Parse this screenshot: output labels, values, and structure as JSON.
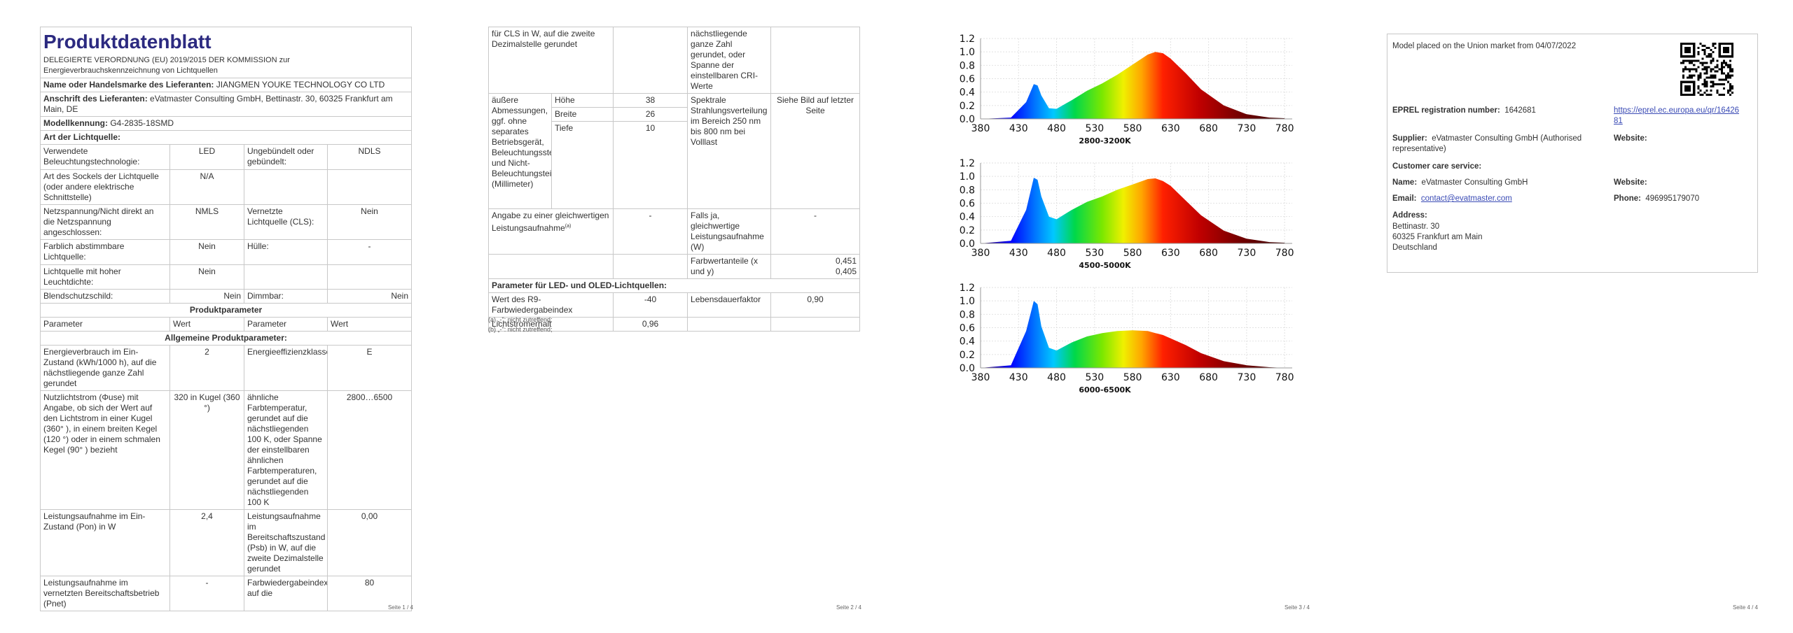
{
  "page1": {
    "title": "Produktdatenblatt",
    "regulation": "DELEGIERTE VERORDNUNG (EU) 2019/2015 DER KOMMISSION zur Energieverbrauchskennzeichnung von Lichtquellen",
    "supplier_label": "Name oder Handelsmarke des Lieferanten:",
    "supplier_value": "JIANGMEN YOUKE TECHNOLOGY CO LTD",
    "address_label": "Anschrift des Lieferanten:",
    "address_value": "eVatmaster Consulting GmbH, Bettinastr. 30, 60325 Frankfurt am Main, DE",
    "model_label": "Modellkennung:",
    "model_value": "G4-2835-18SMD",
    "light_type": "Art der Lichtquelle:",
    "rows": [
      {
        "a": "Verwendete Beleuchtungstechnologie:",
        "b": "LED",
        "c": "Ungebündelt oder gebündelt:",
        "d": "NDLS"
      },
      {
        "a": "Art des Sockels der Lichtquelle (oder andere elektrische Schnittstelle)",
        "b": "N/A",
        "c": "",
        "d": ""
      },
      {
        "a": "Netzspannung/Nicht direkt an die Netzspannung angeschlossen:",
        "b": "NMLS",
        "c": "Vernetzte Lichtquelle (CLS):",
        "d": "Nein"
      },
      {
        "a": "Farblich abstimmbare Lichtquelle:",
        "b": "Nein",
        "c": "Hülle:",
        "d": "-"
      },
      {
        "a": "Lichtquelle mit hoher Leuchtdichte:",
        "b": "Nein",
        "c": "",
        "d": ""
      },
      {
        "a": "Blendschutzschild:",
        "b": "Nein",
        "c": "Dimmbar:",
        "d": "Nein"
      }
    ],
    "produktparameter": "Produktparameter",
    "hdr_parameter": "Parameter",
    "hdr_wert": "Wert",
    "allgemeine": "Allgemeine Produktparameter:",
    "params": [
      {
        "a": "Energieverbrauch im Ein-Zustand (kWh/1000 h), auf die nächstliegende ganze Zahl gerundet",
        "b": "2",
        "c": "Energieeffizienzklasse",
        "d": "E"
      },
      {
        "a": "Nutzlichtstrom (Φuse) mit Angabe, ob sich der Wert auf den Lichtstrom in einer Kugel (360° ), in einem breiten Kegel (120 °) oder in einem schmalen Kegel (90° ) bezieht",
        "b": "320 in Kugel (360 °)",
        "c": "ähnliche Farbtemperatur, gerundet auf die nächstliegenden 100 K, oder Spanne der einstellbaren ähnlichen Farbtemperaturen, gerundet auf die nächstliegenden 100 K",
        "d": "2800…6500"
      },
      {
        "a": "Leistungsaufnahme im Ein-Zustand (Pon) in W",
        "b": "2,4",
        "c": "Leistungsaufnahme im Bereitschaftszustand (Psb) in W, auf die zweite Dezimalstelle gerundet",
        "d": "0,00"
      },
      {
        "a": "Leistungsaufnahme im vernetzten Bereitschaftsbetrieb (Pnet)",
        "b": "-",
        "c": "Farbwiedergabeindex, auf die",
        "d": "80"
      }
    ],
    "page_num": "Seite 1 / 4"
  },
  "page2": {
    "r0": {
      "a": "für CLS in W, auf die zweite Dezimalstelle gerundet",
      "c": "nächstliegende ganze Zahl gerundet, oder Spanne der einstellbaren CRI-Werte"
    },
    "dims_label": "äußere Abmessungen, ggf. ohne separates Betriebsgerät, Beleuchtungssteuerungsteile und Nicht-Beleuchtungsteile (Millimeter)",
    "dims": [
      {
        "name": "Höhe",
        "value": "38"
      },
      {
        "name": "Breite",
        "value": "26"
      },
      {
        "name": "Tiefe",
        "value": "10"
      }
    ],
    "spectral_label": "Spektrale Strahlungsverteilung im Bereich 250 nm bis 800 nm bei Volllast",
    "spectral_value": "Siehe Bild auf letzter Seite",
    "equiv_label": "Angabe zu einer gleichwertigen Leistungsaufnahme",
    "equiv_sup": "(a)",
    "equiv_value": "-",
    "ifyes_label": "Falls ja, gleichwertige Leistungsaufnahme (W)",
    "ifyes_value": "-",
    "chroma_label": "Farbwertanteile (x und y)",
    "chroma_x": "0,451",
    "chroma_y": "0,405",
    "led_params": "Parameter für LED- und OLED-Lichtquellen:",
    "r9_label": "Wert des R9-Farbwiedergabeindex",
    "r9_value": "-40",
    "lifetime_label": "Lebensdauerfaktor",
    "lifetime_value": "0,90",
    "flux_label": "Lichtstromerhalt",
    "flux_value": "0,96",
    "fn_a": "(a) „-\": nicht zutreffend;",
    "fn_b": "(b) „-\": nicht zutreffend;",
    "page_num": "Seite 2 / 4"
  },
  "page3": {
    "chart_data": [
      {
        "type": "area",
        "title": "2800-3200K",
        "x": [
          380,
          430,
          480,
          530,
          580,
          630,
          680,
          730,
          780
        ],
        "xlim": [
          380,
          790
        ],
        "ylim": [
          0,
          1.2
        ],
        "yticks": [
          0.0,
          0.2,
          0.4,
          0.6,
          0.8,
          1.0,
          1.2
        ],
        "series": [
          {
            "x": [
              380,
              420,
              440,
              450,
              455,
              460,
              470,
              480,
              500,
              520,
              540,
              560,
              580,
              600,
              610,
              620,
              630,
              650,
              670,
              700,
              730,
              760,
              780
            ],
            "values": [
              0.0,
              0.02,
              0.25,
              0.52,
              0.5,
              0.35,
              0.16,
              0.15,
              0.28,
              0.42,
              0.53,
              0.66,
              0.81,
              0.96,
              1.0,
              0.98,
              0.9,
              0.68,
              0.44,
              0.2,
              0.07,
              0.02,
              0.01
            ]
          }
        ]
      },
      {
        "type": "area",
        "title": "4500-5000K",
        "x": [
          380,
          430,
          480,
          530,
          580,
          630,
          680,
          730,
          780
        ],
        "xlim": [
          380,
          790
        ],
        "ylim": [
          0,
          1.2
        ],
        "yticks": [
          0.0,
          0.2,
          0.4,
          0.6,
          0.8,
          1.0,
          1.2
        ],
        "series": [
          {
            "x": [
              380,
              420,
              440,
              450,
              455,
              460,
              470,
              480,
              500,
              520,
              540,
              560,
              580,
              600,
              610,
              620,
              630,
              650,
              670,
              700,
              730,
              760,
              780
            ],
            "values": [
              0.0,
              0.04,
              0.5,
              0.98,
              0.95,
              0.7,
              0.4,
              0.36,
              0.5,
              0.62,
              0.7,
              0.8,
              0.88,
              0.96,
              0.97,
              0.93,
              0.86,
              0.64,
              0.42,
              0.19,
              0.07,
              0.02,
              0.01
            ]
          }
        ]
      },
      {
        "type": "area",
        "title": "6000-6500K",
        "x": [
          380,
          430,
          480,
          530,
          580,
          630,
          680,
          730,
          780
        ],
        "xlim": [
          380,
          790
        ],
        "ylim": [
          0,
          1.2
        ],
        "yticks": [
          0.0,
          0.2,
          0.4,
          0.6,
          0.8,
          1.0,
          1.2
        ],
        "series": [
          {
            "x": [
              380,
              420,
              440,
              450,
              455,
              460,
              470,
              480,
              500,
              520,
              540,
              560,
              580,
              600,
              610,
              620,
              630,
              650,
              670,
              700,
              730,
              760,
              780
            ],
            "values": [
              0.0,
              0.04,
              0.55,
              1.0,
              0.95,
              0.62,
              0.3,
              0.26,
              0.38,
              0.47,
              0.52,
              0.55,
              0.56,
              0.55,
              0.52,
              0.49,
              0.44,
              0.34,
              0.22,
              0.1,
              0.04,
              0.01,
              0.0
            ]
          }
        ]
      }
    ],
    "page_num": "Seite 3 / 4"
  },
  "page4": {
    "placed": "Model placed on the Union market from 04/07/2022",
    "eprel_label": "EPREL registration number:",
    "eprel_value": "1642681",
    "eprel_url": "https://eprel.ec.europa.eu/qr/1642681",
    "supplier_label": "Supplier:",
    "supplier_value": "eVatmaster Consulting GmbH (Authorised representative)",
    "website_label": "Website:",
    "care_label": "Customer care service:",
    "name_label": "Name:",
    "name_value": "eVatmaster Consulting GmbH",
    "email_label": "Email:",
    "email_value": "contact@evatmaster.com",
    "phone_label": "Phone:",
    "phone_value": "496995179070",
    "address_label": "Address:",
    "address_line1": "Bettinastr. 30",
    "address_line2": "60325 Frankfurt am Main",
    "address_line3": "Deutschland",
    "page_num": "Seite 4 / 4"
  }
}
